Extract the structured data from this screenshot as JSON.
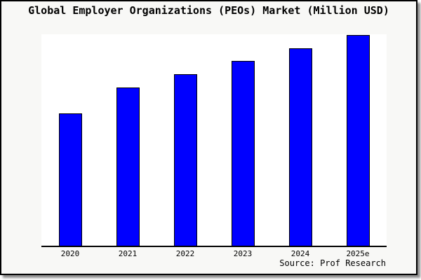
{
  "title": "Global Employer Organizations (PEOs) Market (Million USD)",
  "source": "Source: Prof Research",
  "colors": {
    "bar_fill": "#0000ff",
    "bar_border": "#000000",
    "frame_background": "#f8f8f6",
    "plot_background": "#ffffff",
    "axis": "#000000",
    "text": "#000000"
  },
  "chart_data": {
    "type": "bar",
    "title": "Global Employer Organizations (PEOs) Market (Million USD)",
    "categories": [
      "2020",
      "2021",
      "2022",
      "2023",
      "2024",
      "2025e"
    ],
    "values": [
      62.8,
      75.1,
      81.4,
      87.7,
      93.7,
      100
    ],
    "values_note": "y-axis has no tick labels in the image; values are relative bar heights with the tallest bar (2025e) = 100",
    "xlabel": "",
    "ylabel": "",
    "ylim": [
      0,
      100.3
    ],
    "grid": false,
    "legend": false,
    "annotations": [
      "Source: Prof Research"
    ]
  }
}
